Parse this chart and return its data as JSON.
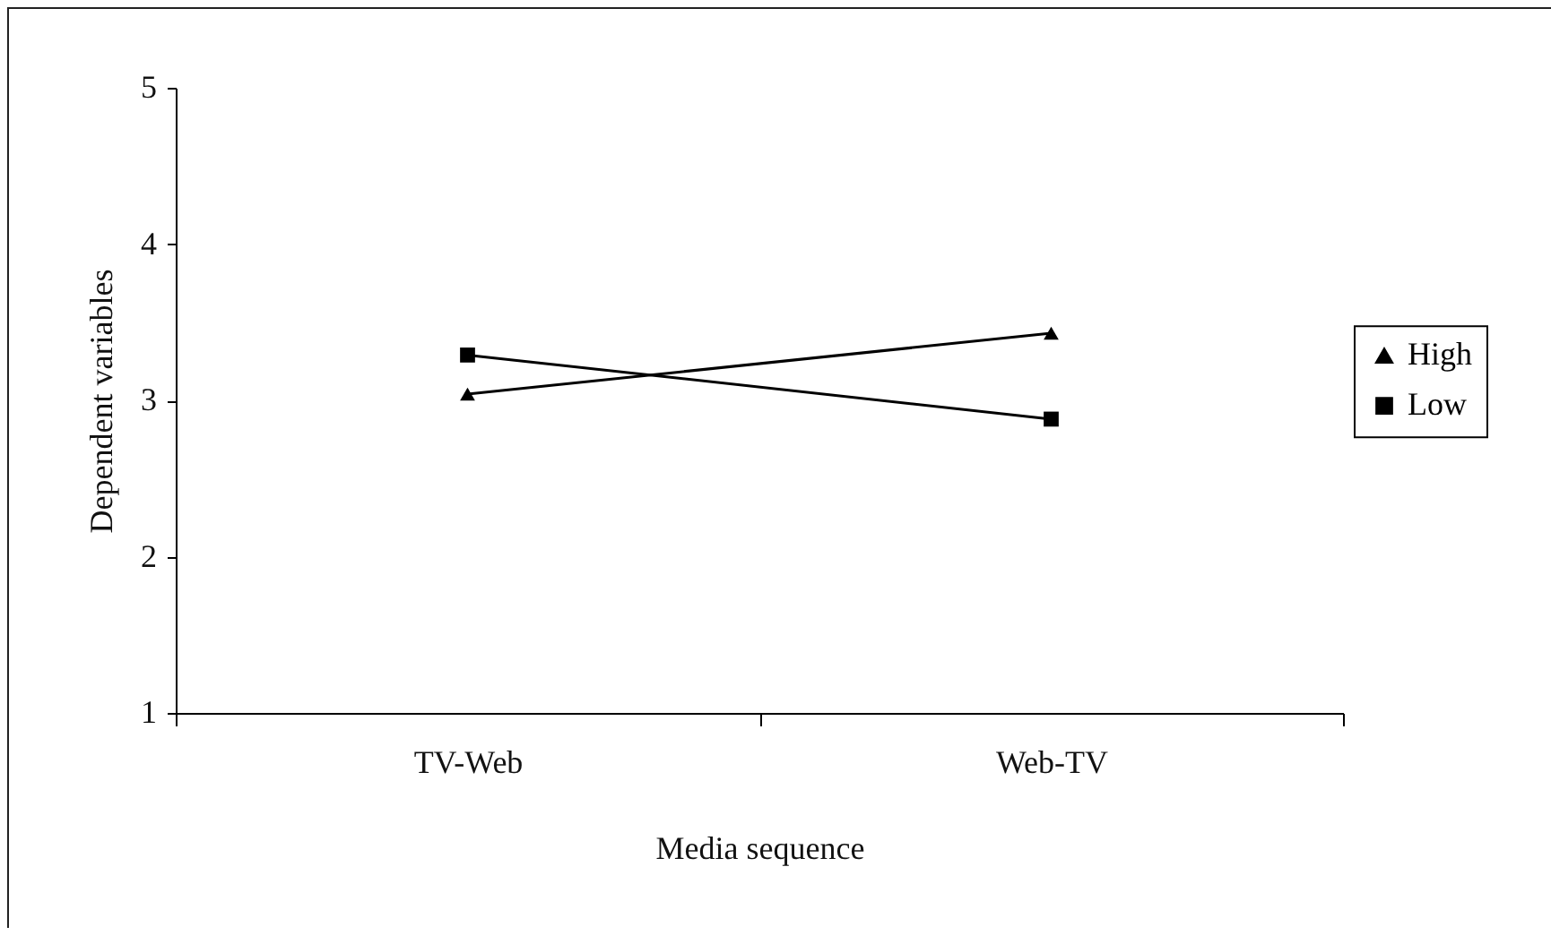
{
  "chart_data": {
    "type": "line",
    "xlabel": "Media sequence",
    "ylabel": "Dependent variables",
    "categories": [
      "TV-Web",
      "Web-TV"
    ],
    "series": [
      {
        "name": "High",
        "color": "#000000",
        "marker": "triangle",
        "values": [
          3.04,
          3.43
        ]
      },
      {
        "name": "Low",
        "color": "#000000",
        "marker": "square",
        "values": [
          3.29,
          2.88
        ]
      }
    ],
    "ylim": [
      1,
      5
    ],
    "yticks": [
      1,
      2,
      3,
      4,
      5
    ],
    "grid": false,
    "legend": "right"
  }
}
